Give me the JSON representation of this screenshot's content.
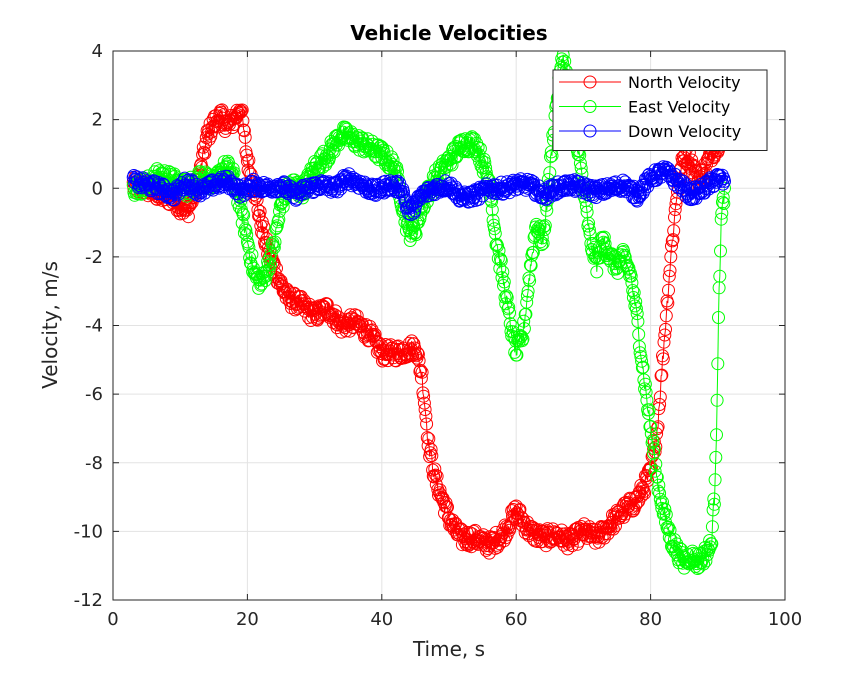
{
  "chart_data": {
    "type": "scatter",
    "title": "Vehicle Velocities",
    "xlabel": "Time, s",
    "ylabel": "Velocity, m/s",
    "xlim": [
      0,
      100
    ],
    "ylim": [
      -12,
      4
    ],
    "xticks": [
      "0",
      "20",
      "40",
      "60",
      "80",
      "100"
    ],
    "yticks": [
      "4",
      "2",
      "0",
      "-2",
      "-4",
      "-6",
      "-8",
      "-10",
      "-12"
    ],
    "grid": true,
    "legend_position": "top-right",
    "marker": "circle-line",
    "series": [
      {
        "name": "North Velocity",
        "color": "#ff0000",
        "points": [
          [
            3,
            0.1
          ],
          [
            5,
            0.0
          ],
          [
            7,
            -0.2
          ],
          [
            9,
            -0.3
          ],
          [
            11,
            -0.7
          ],
          [
            12,
            -0.2
          ],
          [
            13,
            0.5
          ],
          [
            14,
            1.5
          ],
          [
            15,
            1.9
          ],
          [
            16,
            2.1
          ],
          [
            17,
            1.8
          ],
          [
            18,
            2.0
          ],
          [
            19,
            2.4
          ],
          [
            20,
            0.8
          ],
          [
            21,
            0.0
          ],
          [
            22,
            -1.0
          ],
          [
            23,
            -1.8
          ],
          [
            24,
            -2.3
          ],
          [
            25,
            -2.8
          ],
          [
            26,
            -3.2
          ],
          [
            28,
            -3.4
          ],
          [
            30,
            -3.7
          ],
          [
            32,
            -3.5
          ],
          [
            34,
            -4.0
          ],
          [
            36,
            -3.9
          ],
          [
            38,
            -4.2
          ],
          [
            40,
            -4.8
          ],
          [
            42,
            -4.8
          ],
          [
            44,
            -4.7
          ],
          [
            45,
            -4.6
          ],
          [
            46,
            -5.5
          ],
          [
            47,
            -7.5
          ],
          [
            48,
            -8.5
          ],
          [
            50,
            -9.6
          ],
          [
            51,
            -10.0
          ],
          [
            52,
            -10.2
          ],
          [
            54,
            -10.2
          ],
          [
            56,
            -10.4
          ],
          [
            58,
            -10.1
          ],
          [
            60,
            -9.4
          ],
          [
            62,
            -10.0
          ],
          [
            64,
            -10.2
          ],
          [
            66,
            -10.1
          ],
          [
            68,
            -10.3
          ],
          [
            70,
            -10.0
          ],
          [
            72,
            -10.2
          ],
          [
            74,
            -9.8
          ],
          [
            76,
            -9.4
          ],
          [
            78,
            -9.1
          ],
          [
            80,
            -8.3
          ],
          [
            81,
            -7.0
          ],
          [
            82,
            -4.5
          ],
          [
            83,
            -2.0
          ],
          [
            84,
            0.0
          ],
          [
            85,
            1.0
          ],
          [
            86,
            0.8
          ],
          [
            87,
            0.2
          ],
          [
            88,
            0.5
          ],
          [
            89,
            1.0
          ],
          [
            90,
            1.3
          ],
          [
            91,
            1.8
          ]
        ]
      },
      {
        "name": "East Velocity",
        "color": "#00ff00",
        "points": [
          [
            3,
            0.0
          ],
          [
            5,
            0.1
          ],
          [
            7,
            0.4
          ],
          [
            9,
            0.2
          ],
          [
            11,
            0.0
          ],
          [
            13,
            0.4
          ],
          [
            15,
            0.1
          ],
          [
            16,
            0.5
          ],
          [
            17,
            0.6
          ],
          [
            18,
            0.3
          ],
          [
            19,
            -0.6
          ],
          [
            20,
            -1.5
          ],
          [
            21,
            -2.5
          ],
          [
            22,
            -2.8
          ],
          [
            23,
            -2.3
          ],
          [
            24,
            -1.6
          ],
          [
            25,
            -0.5
          ],
          [
            26,
            0.0
          ],
          [
            27,
            0.1
          ],
          [
            28,
            -0.1
          ],
          [
            29,
            0.2
          ],
          [
            30,
            0.6
          ],
          [
            32,
            1.0
          ],
          [
            34,
            1.6
          ],
          [
            36,
            1.4
          ],
          [
            38,
            1.2
          ],
          [
            40,
            1.0
          ],
          [
            42,
            0.6
          ],
          [
            43,
            -0.4
          ],
          [
            44,
            -1.3
          ],
          [
            45,
            -1.2
          ],
          [
            46,
            -0.5
          ],
          [
            48,
            0.3
          ],
          [
            50,
            0.8
          ],
          [
            52,
            1.3
          ],
          [
            54,
            1.3
          ],
          [
            56,
            0.2
          ],
          [
            57,
            -1.5
          ],
          [
            58,
            -2.6
          ],
          [
            59,
            -3.8
          ],
          [
            60,
            -4.8
          ],
          [
            61,
            -4.3
          ],
          [
            62,
            -2.5
          ],
          [
            63,
            -1.0
          ],
          [
            64,
            -1.6
          ],
          [
            65,
            0.5
          ],
          [
            66,
            2.5
          ],
          [
            67,
            3.9
          ],
          [
            68,
            2.5
          ],
          [
            69,
            1.5
          ],
          [
            70,
            0.0
          ],
          [
            71,
            -1.5
          ],
          [
            72,
            -2.2
          ],
          [
            73,
            -1.5
          ],
          [
            74,
            -2.0
          ],
          [
            75,
            -2.3
          ],
          [
            76,
            -2.0
          ],
          [
            77,
            -2.5
          ],
          [
            78,
            -3.8
          ],
          [
            79,
            -5.5
          ],
          [
            80,
            -7.0
          ],
          [
            81,
            -8.5
          ],
          [
            82,
            -9.5
          ],
          [
            83,
            -10.2
          ],
          [
            84,
            -10.6
          ],
          [
            85,
            -10.9
          ],
          [
            86,
            -10.7
          ],
          [
            87,
            -10.9
          ],
          [
            88,
            -10.7
          ],
          [
            89,
            -10.4
          ],
          [
            89.5,
            -9.0
          ],
          [
            89.8,
            -7.0
          ],
          [
            90,
            -5.0
          ],
          [
            90.2,
            -3.0
          ],
          [
            90.5,
            -1.0
          ],
          [
            91,
            0.0
          ]
        ]
      },
      {
        "name": "Down Velocity",
        "color": "#0000ff",
        "points": [
          [
            3,
            0.2
          ],
          [
            5,
            0.1
          ],
          [
            7,
            0.0
          ],
          [
            9,
            -0.2
          ],
          [
            11,
            0.2
          ],
          [
            13,
            -0.1
          ],
          [
            15,
            0.1
          ],
          [
            17,
            0.2
          ],
          [
            19,
            -0.1
          ],
          [
            21,
            0.1
          ],
          [
            23,
            0.0
          ],
          [
            25,
            0.1
          ],
          [
            27,
            -0.2
          ],
          [
            29,
            0.0
          ],
          [
            31,
            0.1
          ],
          [
            33,
            0.0
          ],
          [
            35,
            0.3
          ],
          [
            37,
            0.1
          ],
          [
            39,
            -0.1
          ],
          [
            41,
            0.1
          ],
          [
            43,
            0.0
          ],
          [
            44,
            -0.7
          ],
          [
            45,
            -0.5
          ],
          [
            46,
            -0.2
          ],
          [
            48,
            0.0
          ],
          [
            50,
            0.1
          ],
          [
            52,
            -0.3
          ],
          [
            54,
            -0.2
          ],
          [
            56,
            0.0
          ],
          [
            58,
            0.0
          ],
          [
            60,
            0.1
          ],
          [
            62,
            0.1
          ],
          [
            64,
            -0.2
          ],
          [
            66,
            0.0
          ],
          [
            68,
            0.1
          ],
          [
            70,
            0.0
          ],
          [
            72,
            -0.1
          ],
          [
            74,
            0.0
          ],
          [
            76,
            0.1
          ],
          [
            78,
            -0.2
          ],
          [
            80,
            0.3
          ],
          [
            82,
            0.5
          ],
          [
            84,
            0.2
          ],
          [
            86,
            -0.2
          ],
          [
            88,
            0.0
          ],
          [
            90,
            0.3
          ],
          [
            91,
            0.2
          ]
        ]
      }
    ]
  }
}
